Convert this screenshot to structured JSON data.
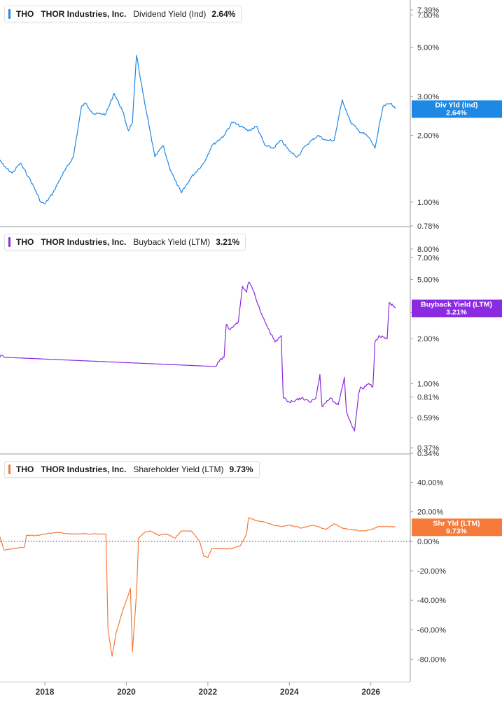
{
  "panels": [
    {
      "id": "div",
      "ticker": "THO",
      "company": "THOR Industries, Inc.",
      "metric": "Dividend Yield (Ind)",
      "value": "2.64%",
      "color": "#1e88e5",
      "tag_line1": "Div Yld (Ind)",
      "tag_line2": "2.64%"
    },
    {
      "id": "buyback",
      "ticker": "THO",
      "company": "THOR Industries, Inc.",
      "metric": "Buyback Yield (LTM)",
      "value": "3.21%",
      "color": "#8a2be2",
      "tag_line1": "Buyback Yield (LTM)",
      "tag_line2": "3.21%"
    },
    {
      "id": "shr",
      "ticker": "THO",
      "company": "THOR Industries, Inc.",
      "metric": "Shareholder Yield (LTM)",
      "value": "9.73%",
      "color": "#f47b3a",
      "tag_line1": "Shr Yld (LTM)",
      "tag_line2": "9.73%"
    }
  ],
  "x_axis": {
    "tick_labels": [
      "2018",
      "2020",
      "2022",
      "2024",
      "2026"
    ],
    "tick_values": [
      2018,
      2020,
      2022,
      2024,
      2026
    ]
  },
  "chart_data": [
    {
      "type": "line",
      "name": "Dividend Yield (Ind)",
      "scale": "log",
      "ylim": [
        0.78,
        7.39
      ],
      "y_tick_labels": [
        "7.39%",
        "7.00%",
        "5.00%",
        "3.00%",
        "2.00%",
        "1.00%",
        "0.78%"
      ],
      "y_tick_values": [
        7.39,
        7.0,
        5.0,
        3.0,
        2.0,
        1.0,
        0.78
      ],
      "x": [
        2016.9,
        2017.0,
        2017.2,
        2017.4,
        2017.6,
        2017.75,
        2017.9,
        2018.0,
        2018.2,
        2018.4,
        2018.7,
        2018.9,
        2019.0,
        2019.2,
        2019.5,
        2019.7,
        2019.9,
        2020.05,
        2020.15,
        2020.25,
        2020.45,
        2020.7,
        2020.9,
        2021.05,
        2021.2,
        2021.35,
        2021.6,
        2021.9,
        2022.1,
        2022.4,
        2022.6,
        2022.8,
        2023.0,
        2023.2,
        2023.4,
        2023.6,
        2023.8,
        2024.0,
        2024.2,
        2024.4,
        2024.7,
        2024.9,
        2025.1,
        2025.3,
        2025.5,
        2025.7,
        2025.9,
        2026.0,
        2026.1,
        2026.3,
        2026.5,
        2026.6
      ],
      "y": [
        1.55,
        1.45,
        1.35,
        1.5,
        1.3,
        1.15,
        1.0,
        0.98,
        1.1,
        1.3,
        1.6,
        2.7,
        2.8,
        2.5,
        2.5,
        3.1,
        2.6,
        2.1,
        2.3,
        4.6,
        2.8,
        1.6,
        1.8,
        1.45,
        1.25,
        1.1,
        1.3,
        1.5,
        1.8,
        2.0,
        2.3,
        2.2,
        2.1,
        2.2,
        1.8,
        1.75,
        1.9,
        1.7,
        1.6,
        1.8,
        2.0,
        1.9,
        1.9,
        2.9,
        2.3,
        2.1,
        2.0,
        1.9,
        1.75,
        2.7,
        2.8,
        2.64
      ]
    },
    {
      "type": "line",
      "name": "Buyback Yield (LTM)",
      "scale": "log",
      "ylim": [
        0.34,
        8.0
      ],
      "y_tick_labels": [
        "8.00%",
        "7.00%",
        "5.00%",
        "3.00%",
        "2.00%",
        "1.00%",
        "0.81%",
        "0.59%",
        "0.37%",
        "0.34%"
      ],
      "y_tick_values": [
        8.0,
        7.0,
        5.0,
        3.0,
        2.0,
        1.0,
        0.81,
        0.59,
        0.37,
        0.34
      ],
      "x": [
        2016.9,
        2016.95,
        2017.0,
        2022.2,
        2022.3,
        2022.4,
        2022.45,
        2022.55,
        2022.75,
        2022.85,
        2022.95,
        2023.0,
        2023.1,
        2023.3,
        2023.5,
        2023.65,
        2023.8,
        2023.85,
        2024.0,
        2024.3,
        2024.5,
        2024.65,
        2024.75,
        2024.8,
        2025.0,
        2025.1,
        2025.2,
        2025.35,
        2025.4,
        2025.5,
        2025.6,
        2025.7,
        2025.75,
        2025.8,
        2025.95,
        2026.05,
        2026.1,
        2026.2,
        2026.4,
        2026.45,
        2026.55,
        2026.6
      ],
      "y": [
        1.5,
        1.55,
        1.5,
        1.3,
        1.45,
        1.5,
        2.5,
        2.3,
        2.6,
        4.5,
        4.1,
        4.8,
        4.3,
        3.0,
        2.3,
        1.9,
        2.1,
        0.8,
        0.75,
        0.8,
        0.75,
        0.8,
        1.15,
        0.7,
        0.8,
        0.75,
        0.72,
        1.1,
        0.65,
        0.55,
        0.48,
        0.85,
        0.95,
        0.92,
        1.0,
        0.95,
        1.9,
        2.1,
        2.0,
        3.5,
        3.3,
        3.21
      ]
    },
    {
      "type": "line",
      "name": "Shareholder Yield (LTM)",
      "scale": "linear",
      "ylim": [
        -85,
        45
      ],
      "y_tick_labels": [
        "40.00%",
        "20.00%",
        "0.00%",
        "-20.00%",
        "-40.00%",
        "-60.00%",
        "-80.00%"
      ],
      "y_tick_values": [
        40,
        20,
        0,
        -20,
        -40,
        -60,
        -80
      ],
      "x": [
        2016.9,
        2017.0,
        2017.2,
        2017.5,
        2017.55,
        2017.8,
        2018.0,
        2018.3,
        2018.6,
        2018.9,
        2019.2,
        2019.5,
        2019.55,
        2019.65,
        2019.75,
        2019.9,
        2020.0,
        2020.1,
        2020.15,
        2020.25,
        2020.3,
        2020.45,
        2020.6,
        2020.8,
        2021.0,
        2021.2,
        2021.35,
        2021.6,
        2021.8,
        2021.9,
        2022.0,
        2022.1,
        2022.3,
        2022.6,
        2022.8,
        2022.95,
        2023.0,
        2023.2,
        2023.4,
        2023.6,
        2023.8,
        2024.0,
        2024.3,
        2024.6,
        2024.9,
        2025.1,
        2025.3,
        2025.5,
        2025.8,
        2026.0,
        2026.2,
        2026.4,
        2026.6
      ],
      "y": [
        3,
        -6,
        -5,
        -4,
        4,
        4,
        5,
        6,
        5,
        5,
        5,
        5,
        -60,
        -78,
        -62,
        -48,
        -40,
        -32,
        -75,
        -35,
        2,
        6,
        7,
        4,
        5,
        2,
        7,
        7,
        0,
        -10,
        -11,
        -5,
        -5,
        -5,
        -3,
        5,
        16,
        14,
        13,
        11,
        10,
        11,
        9,
        11,
        8,
        12,
        9,
        8,
        7,
        8,
        10,
        10,
        9.73
      ]
    }
  ]
}
